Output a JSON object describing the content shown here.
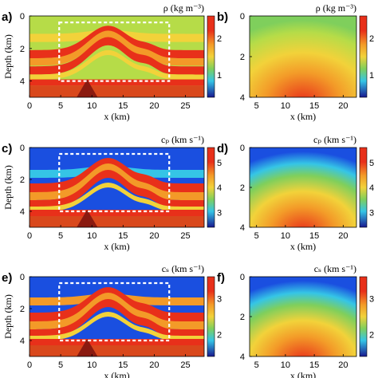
{
  "panels": [
    {
      "id": "a",
      "label": "a)",
      "title": "ρ (kg m⁻³)",
      "xticks": [
        "0",
        "5",
        "10",
        "15",
        "20",
        "25"
      ],
      "yticks": [
        "0",
        "2",
        "4"
      ],
      "cbticks": [
        "2",
        "1"
      ],
      "xlabel": "x (km)",
      "ylabel": "Depth (km)",
      "type": "full"
    },
    {
      "id": "b",
      "label": "b)",
      "title": "ρ (kg m⁻³)",
      "xticks": [
        "5",
        "10",
        "15",
        "20"
      ],
      "yticks": [
        "0",
        "2",
        "4"
      ],
      "cbticks": [
        "2",
        "1"
      ],
      "xlabel": "x (km)",
      "ylabel": "",
      "type": "smooth"
    },
    {
      "id": "c",
      "label": "c)",
      "title": "cₚ (km s⁻¹)",
      "xticks": [
        "0",
        "5",
        "10",
        "15",
        "20",
        "25"
      ],
      "yticks": [
        "0",
        "2",
        "4"
      ],
      "cbticks": [
        "5",
        "4",
        "3"
      ],
      "xlabel": "x (km)",
      "ylabel": "Depth (km)",
      "type": "full"
    },
    {
      "id": "d",
      "label": "d)",
      "title": "cₚ (km s⁻¹)",
      "xticks": [
        "5",
        "10",
        "15",
        "20"
      ],
      "yticks": [
        "0",
        "2",
        "4"
      ],
      "cbticks": [
        "5",
        "4",
        "3"
      ],
      "xlabel": "x (km)",
      "ylabel": "",
      "type": "smooth"
    },
    {
      "id": "e",
      "label": "e)",
      "title": "cₛ (km s⁻¹)",
      "xticks": [
        "0",
        "5",
        "10",
        "15",
        "20",
        "25"
      ],
      "yticks": [
        "0",
        "2",
        "4"
      ],
      "cbticks": [
        "3",
        "2"
      ],
      "xlabel": "x (km)",
      "ylabel": "Depth (km)",
      "type": "full"
    },
    {
      "id": "f",
      "label": "f)",
      "title": "cₛ (km s⁻¹)",
      "xticks": [
        "5",
        "10",
        "15",
        "20"
      ],
      "yticks": [
        "0",
        "2",
        "4"
      ],
      "cbticks": [
        "3",
        "2"
      ],
      "xlabel": "x (km)",
      "ylabel": "",
      "type": "smooth"
    }
  ],
  "colors": {
    "red": "#e8301a",
    "orange": "#f39a28",
    "yellow": "#f2d23a",
    "lime": "#b6dc48",
    "green": "#7fcf5c",
    "cyan": "#35c5e6",
    "blue": "#1a4fe0",
    "navy": "#19198f"
  }
}
